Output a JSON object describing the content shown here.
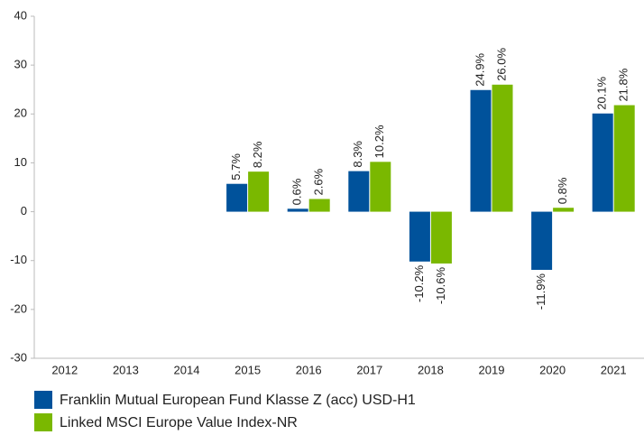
{
  "chart_data": {
    "type": "bar",
    "categories": [
      "2012",
      "2013",
      "2014",
      "2015",
      "2016",
      "2017",
      "2018",
      "2019",
      "2020",
      "2021"
    ],
    "series": [
      {
        "name": "Franklin Mutual European Fund Klasse Z (acc) USD-H1",
        "color": "#00529b",
        "values": [
          null,
          null,
          null,
          5.7,
          0.6,
          8.3,
          -10.2,
          24.9,
          -11.9,
          20.1
        ],
        "value_labels": [
          null,
          null,
          null,
          "5.7%",
          "0.6%",
          "8.3%",
          "-10.2%",
          "24.9%",
          "-11.9%",
          "20.1%"
        ]
      },
      {
        "name": "Linked MSCI Europe Value Index-NR",
        "color": "#7ab800",
        "values": [
          null,
          null,
          null,
          8.2,
          2.6,
          10.2,
          -10.6,
          26.0,
          0.8,
          21.8
        ],
        "value_labels": [
          null,
          null,
          null,
          "8.2%",
          "2.6%",
          "10.2%",
          "-10.6%",
          "26.0%",
          "0.8%",
          "21.8%"
        ]
      }
    ],
    "ylim": [
      -30,
      40
    ],
    "yticks": [
      -30,
      -20,
      -10,
      0,
      10,
      20,
      30,
      40
    ],
    "grid": false,
    "legend": "bottom"
  }
}
